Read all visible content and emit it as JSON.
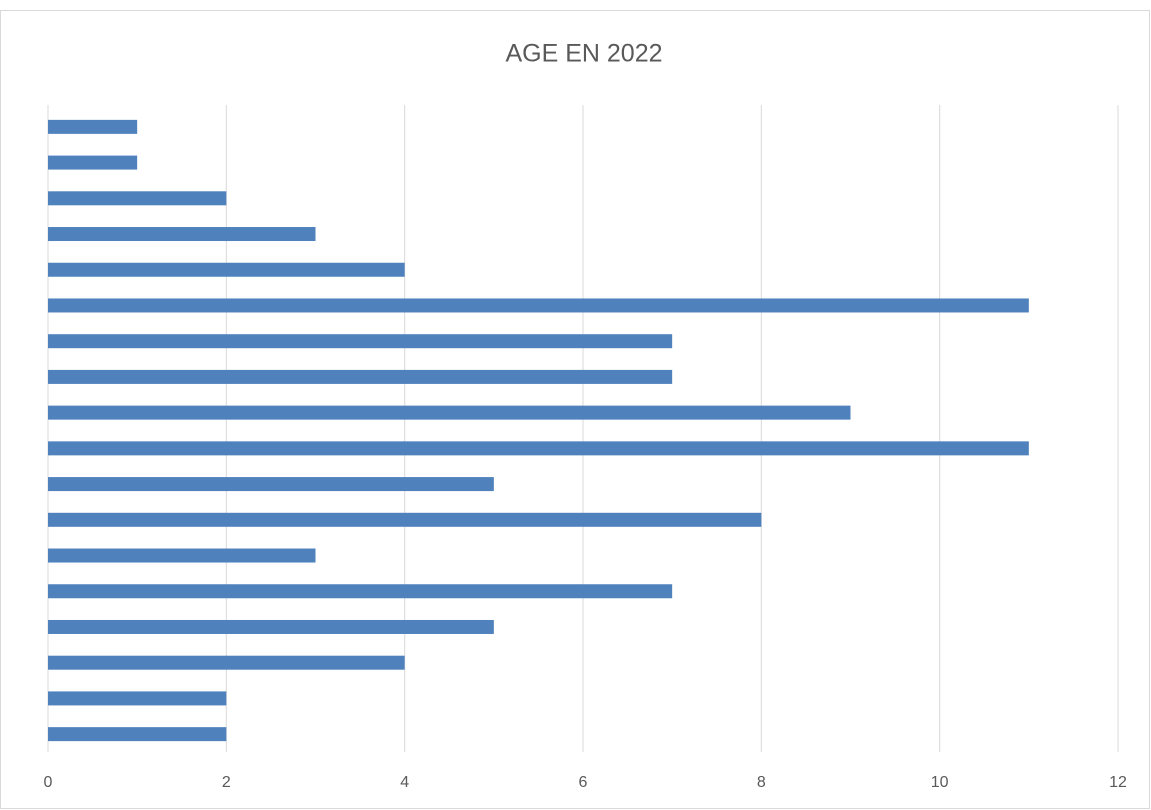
{
  "chart_data": {
    "type": "bar",
    "orientation": "horizontal",
    "title": "AGE EN 2022",
    "categories": [
      null,
      null,
      null,
      null,
      null,
      null,
      null,
      null,
      null,
      null,
      null,
      null,
      null,
      null,
      null,
      null,
      null,
      null
    ],
    "values": [
      2,
      2,
      4,
      5,
      7,
      3,
      8,
      5,
      11,
      9,
      7,
      7,
      11,
      4,
      3,
      2,
      1,
      1
    ],
    "color": "#4f81bd",
    "xlim": [
      0,
      12
    ],
    "xticks": [
      0,
      2,
      4,
      6,
      8,
      10,
      12
    ],
    "grid": true
  }
}
